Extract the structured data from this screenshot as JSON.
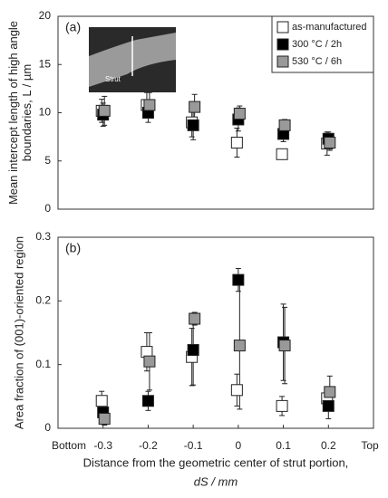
{
  "chart_data": [
    {
      "type": "scatter",
      "panel_label": "(a)",
      "ylabel": [
        "Mean intercept length of high angle",
        "boundaries, L / µm"
      ],
      "inset_label": "Strut",
      "x": [
        -0.3,
        -0.2,
        -0.1,
        0,
        0.1,
        0.2
      ],
      "xlim": [
        -0.4,
        0.3
      ],
      "ylim": [
        0,
        20
      ],
      "yticks": [
        0,
        5,
        10,
        15,
        20
      ],
      "legend": "upper right",
      "series": [
        {
          "name": "as-manufactured",
          "color": "#ffffff",
          "values": [
            10.2,
            10.8,
            9.0,
            6.9,
            5.7,
            6.8
          ],
          "errors": [
            1.2,
            1.3,
            1.5,
            1.5,
            0.4,
            1.2
          ]
        },
        {
          "name": "300 °C / 2h",
          "color": "#000000",
          "values": [
            9.8,
            10.0,
            8.7,
            9.3,
            7.8,
            7.3
          ],
          "errors": [
            1.2,
            1.0,
            1.5,
            1.2,
            0.8,
            0.7
          ]
        },
        {
          "name": "530 °C / 6h",
          "color": "#999999",
          "values": [
            10.2,
            10.8,
            10.6,
            9.9,
            8.7,
            6.9
          ],
          "errors": [
            1.5,
            1.3,
            1.3,
            0.8,
            0.6,
            0.8
          ]
        }
      ]
    },
    {
      "type": "scatter",
      "panel_label": "(b)",
      "ylabel": [
        "Area fraction of (001)-oriented region"
      ],
      "xlabel": [
        "Distance from the geometric center of strut portion,",
        "dS / mm"
      ],
      "x": [
        -0.3,
        -0.2,
        -0.1,
        0,
        0.1,
        0.2
      ],
      "xlim": [
        -0.4,
        0.3
      ],
      "xticks": [
        {
          "value": -0.4,
          "label": "Bottom"
        },
        -0.3,
        -0.2,
        -0.1,
        0,
        0.1,
        0.2,
        {
          "value": 0.3,
          "label": "Top"
        }
      ],
      "ylim": [
        0,
        0.3
      ],
      "yticks": [
        0,
        0.1,
        0.2,
        0.3
      ],
      "series": [
        {
          "name": "as-manufactured",
          "color": "#ffffff",
          "values": [
            0.043,
            0.12,
            0.112,
            0.06,
            0.035,
            0.047
          ],
          "errors": [
            0.015,
            0.03,
            0.045,
            0.025,
            0.015,
            0.01
          ]
        },
        {
          "name": "300 °C / 2h",
          "color": "#000000",
          "values": [
            0.025,
            0.043,
            0.123,
            0.233,
            0.135,
            0.035
          ],
          "errors": [
            0.012,
            0.015,
            0.055,
            0.018,
            0.06,
            0.02
          ]
        },
        {
          "name": "530 °C / 6h",
          "color": "#999999",
          "values": [
            0.015,
            0.105,
            0.172,
            0.13,
            0.13,
            0.057
          ],
          "errors": [
            0.01,
            0.045,
            0.01,
            0.1,
            0.06,
            0.025
          ]
        }
      ]
    }
  ]
}
